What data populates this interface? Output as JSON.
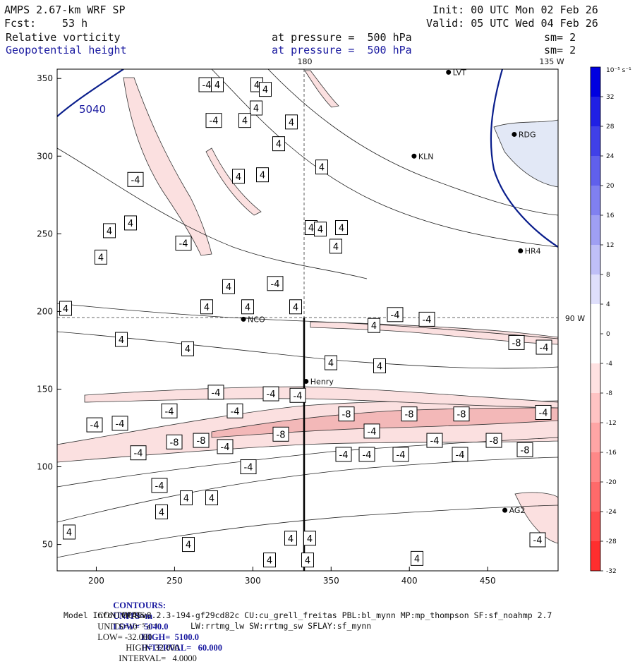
{
  "header": {
    "model": "AMPS 2.67-km WRF SP",
    "init": "Init: 00 UTC Mon 02 Feb 26",
    "fcst_label": "Fcst:",
    "fcst_value": "53 h",
    "valid": "Valid: 05 UTC Wed 04 Feb 26",
    "field1_name": "Relative vorticity",
    "field1_level": "at pressure =  500 hPa",
    "field1_sm": "sm= 2",
    "field2_name": "Geopotential height",
    "field2_level": "at pressure =  500 hPa",
    "field2_sm": "sm= 2"
  },
  "footer": {
    "line1_label": "CONTOURS:",
    "line1_units": "UNITS=m",
    "line1_low": "LOW=  5040.0",
    "line1_high": "HIGH=  5100.0",
    "line1_interval": "INTERVAL=   60.000",
    "line2_label": "CONTOURS:",
    "line2_units": "UNITS=10⁻⁵ s⁻¹",
    "line2_low": "LOW= -32.000",
    "line2_high": "HIGH= 32.000",
    "line2_interval": "INTERVAL=   4.0000",
    "model_info": "Model Info: MPASv8.2.3-194-gf29cd82c CU:cu_grell_freitas PBL:bl_mynn MP:mp_thompson SF:sf_noahmp 2.7",
    "model_info2": "LW:rrtmg_lw SW:rrtmg_sw SFLAY:sf_mynn"
  },
  "chart_data": {
    "type": "heatmap",
    "x_ticks": [
      200,
      250,
      300,
      350,
      400,
      450
    ],
    "y_ticks": [
      50,
      100,
      150,
      200,
      250,
      300,
      350
    ],
    "xlim": [
      175,
      495
    ],
    "ylim": [
      33,
      356
    ],
    "grid_labels": {
      "meridian_180": "180",
      "meridian_135": "135 W",
      "lat_90": "90 W"
    },
    "stations": [
      {
        "name": "NCO",
        "x": 294,
        "y": 195
      },
      {
        "name": "Henry",
        "x": 334,
        "y": 155
      },
      {
        "name": "KLN",
        "x": 403,
        "y": 300
      },
      {
        "name": "RDG",
        "x": 467,
        "y": 314
      },
      {
        "name": "HR4",
        "x": 471,
        "y": 239
      },
      {
        "name": "AG2",
        "x": 461,
        "y": 72
      },
      {
        "name": "LVT",
        "x": 425,
        "y": 354
      }
    ],
    "height_contours": [
      {
        "value": 5040,
        "label": "5040"
      }
    ],
    "colorbar": {
      "title": "10⁻⁵ s⁻¹",
      "levels": [
        32,
        28,
        24,
        20,
        16,
        12,
        8,
        4,
        0,
        -4,
        -8,
        -12,
        -16,
        -20,
        -24,
        -28,
        -32
      ],
      "positive_color": "#0000e0",
      "negative_color": "#ff1010"
    },
    "vorticity_labels": [
      {
        "x": 293,
        "y": 346,
        "t": "-4"
      },
      {
        "x": 308,
        "y": 346,
        "t": "4"
      },
      {
        "x": 364,
        "y": 346,
        "t": "4"
      },
      {
        "x": 376,
        "y": 343,
        "t": "4"
      },
      {
        "x": 363,
        "y": 331,
        "t": "4"
      },
      {
        "x": 303,
        "y": 323,
        "t": "-4"
      },
      {
        "x": 347,
        "y": 323,
        "t": "4"
      },
      {
        "x": 413,
        "y": 322,
        "t": "4"
      },
      {
        "x": 395,
        "y": 308,
        "t": "4"
      },
      {
        "x": 192,
        "y": 285,
        "t": "-4"
      },
      {
        "x": 456,
        "y": 293,
        "t": "4"
      },
      {
        "x": 372,
        "y": 288,
        "t": "4"
      },
      {
        "x": 338,
        "y": 287,
        "t": "4"
      },
      {
        "x": 155,
        "y": 252,
        "t": "4"
      },
      {
        "x": 185,
        "y": 257,
        "t": "4"
      },
      {
        "x": 260,
        "y": 244,
        "t": "-4"
      },
      {
        "x": 441,
        "y": 254,
        "t": "4"
      },
      {
        "x": 454,
        "y": 253,
        "t": "4"
      },
      {
        "x": 484,
        "y": 254,
        "t": "4"
      },
      {
        "x": 143,
        "y": 235,
        "t": "4"
      },
      {
        "x": 476,
        "y": 242,
        "t": "4"
      },
      {
        "x": 324,
        "y": 216,
        "t": "4"
      },
      {
        "x": 390,
        "y": 218,
        "t": "-4"
      },
      {
        "x": 93,
        "y": 202,
        "t": "4"
      },
      {
        "x": 293,
        "y": 203,
        "t": "4"
      },
      {
        "x": 351,
        "y": 203,
        "t": "4"
      },
      {
        "x": 419,
        "y": 203,
        "t": "4"
      },
      {
        "x": 560,
        "y": 198,
        "t": "-4"
      },
      {
        "x": 605,
        "y": 195,
        "t": "-4"
      },
      {
        "x": 530,
        "y": 191,
        "t": "4"
      },
      {
        "x": 172,
        "y": 182,
        "t": "4"
      },
      {
        "x": 732,
        "y": 180,
        "t": "-8"
      },
      {
        "x": 266,
        "y": 176,
        "t": "4"
      },
      {
        "x": 771,
        "y": 177,
        "t": "-4"
      },
      {
        "x": 469,
        "y": 167,
        "t": "4"
      },
      {
        "x": 538,
        "y": 165,
        "t": "4"
      },
      {
        "x": 306,
        "y": 148,
        "t": "-4"
      },
      {
        "x": 384,
        "y": 147,
        "t": "-4"
      },
      {
        "x": 422,
        "y": 146,
        "t": "-4"
      },
      {
        "x": 240,
        "y": 136,
        "t": "-4"
      },
      {
        "x": 333,
        "y": 136,
        "t": "-4"
      },
      {
        "x": 491,
        "y": 134,
        "t": "-8"
      },
      {
        "x": 580,
        "y": 134,
        "t": "-8"
      },
      {
        "x": 654,
        "y": 134,
        "t": "-8"
      },
      {
        "x": 770,
        "y": 135,
        "t": "-4"
      },
      {
        "x": 134,
        "y": 127,
        "t": "-4"
      },
      {
        "x": 170,
        "y": 128,
        "t": "-4"
      },
      {
        "x": 527,
        "y": 123,
        "t": "-4"
      },
      {
        "x": 398,
        "y": 121,
        "t": "-8"
      },
      {
        "x": 616,
        "y": 117,
        "t": "-4"
      },
      {
        "x": 700,
        "y": 117,
        "t": "-8"
      },
      {
        "x": 247,
        "y": 116,
        "t": "-8"
      },
      {
        "x": 285,
        "y": 117,
        "t": "-8"
      },
      {
        "x": 319,
        "y": 113,
        "t": "-4"
      },
      {
        "x": 744,
        "y": 111,
        "t": "-8"
      },
      {
        "x": 196,
        "y": 109,
        "t": "-4"
      },
      {
        "x": 487,
        "y": 108,
        "t": "-4"
      },
      {
        "x": 520,
        "y": 108,
        "t": "-4"
      },
      {
        "x": 568,
        "y": 108,
        "t": "-4"
      },
      {
        "x": 652,
        "y": 108,
        "t": "-4"
      },
      {
        "x": 352,
        "y": 100,
        "t": "-4"
      },
      {
        "x": 226,
        "y": 88,
        "t": "-4"
      },
      {
        "x": 264,
        "y": 80,
        "t": "4"
      },
      {
        "x": 300,
        "y": 80,
        "t": "4"
      },
      {
        "x": 229,
        "y": 71,
        "t": "4"
      },
      {
        "x": 98,
        "y": 58,
        "t": "4"
      },
      {
        "x": 762,
        "y": 53,
        "t": "-4"
      },
      {
        "x": 412,
        "y": 54,
        "t": "4"
      },
      {
        "x": 439,
        "y": 54,
        "t": "4"
      },
      {
        "x": 267,
        "y": 50,
        "t": "4"
      },
      {
        "x": 382,
        "y": 40,
        "t": "4"
      },
      {
        "x": 436,
        "y": 40,
        "t": "4"
      },
      {
        "x": 591,
        "y": 41,
        "t": "4"
      }
    ]
  }
}
